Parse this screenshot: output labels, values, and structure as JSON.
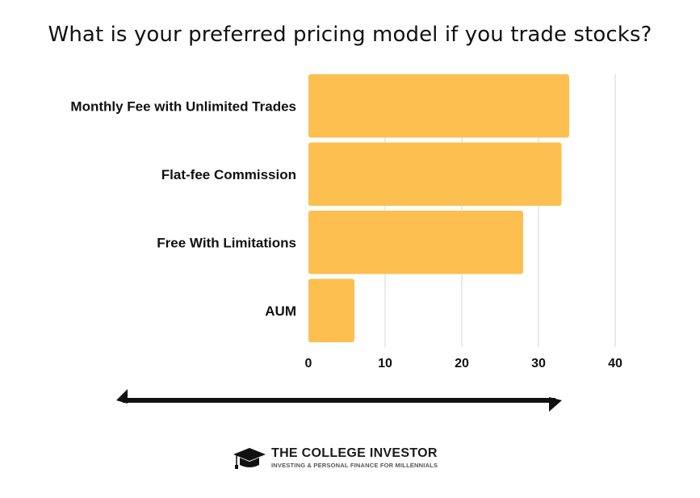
{
  "chart_data": {
    "type": "bar",
    "orientation": "horizontal",
    "title": "What is your preferred pricing model if you trade stocks?",
    "categories": [
      "Monthly Fee with Unlimited Trades",
      "Flat-fee Commission",
      "Free With Limitations",
      "AUM"
    ],
    "values": [
      34,
      33,
      28,
      6
    ],
    "xlim": [
      0,
      40
    ],
    "xticks": [
      0,
      10,
      20,
      30,
      40
    ],
    "grid": true,
    "bar_color": "#FDBF50",
    "grid_color": "#dddddd"
  },
  "branding": {
    "name": "THE COLLEGE INVESTOR",
    "tagline": "INVESTING & PERSONAL FINANCE FOR MILLENNIALS"
  },
  "icons": {
    "arrow": "double-arrow-icon",
    "logo": "graduation-cap-icon"
  }
}
